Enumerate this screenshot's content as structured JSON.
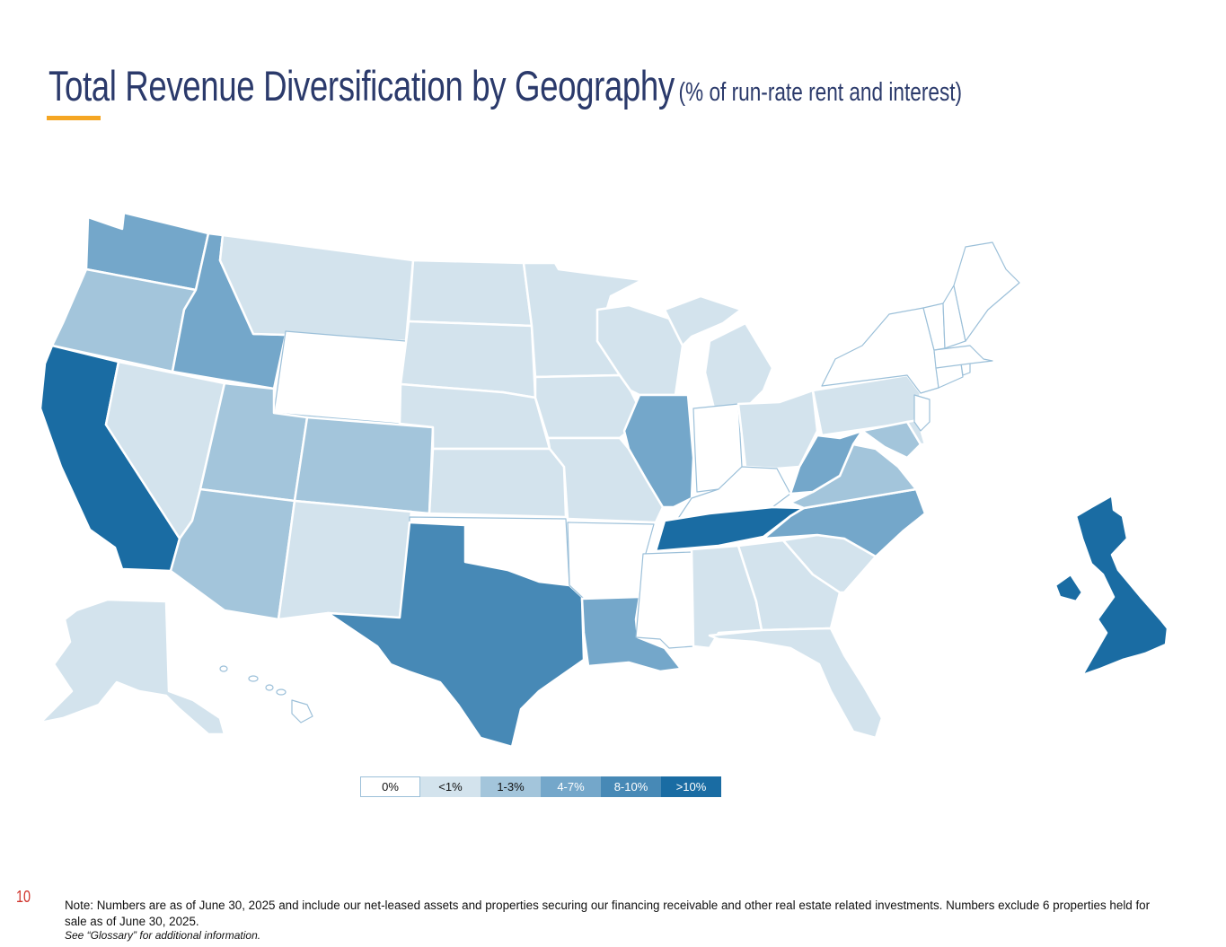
{
  "title": {
    "main": "Total Revenue Diversification by Geography",
    "sub": "(% of run-rate rent and interest)"
  },
  "colors": {
    "0%": "#ffffff",
    "<1%": "#d3e3ed",
    "1-3%": "#a3c5db",
    "4-7%": "#74a7ca",
    "8-10%": "#4789b6",
    ">10%": "#1a6ca3",
    "border": "#ffffff",
    "outline": "#9cc0d9",
    "title": "#2b3a6b",
    "accent": "#f5a623"
  },
  "legend": [
    {
      "label": "0%",
      "level": "0%",
      "text_color": "#111111"
    },
    {
      "label": "<1%",
      "level": "<1%",
      "text_color": "#111111"
    },
    {
      "label": "1-3%",
      "level": "1-3%",
      "text_color": "#111111"
    },
    {
      "label": "4-7%",
      "level": "4-7%",
      "text_color": "#ffffff"
    },
    {
      "label": "8-10%",
      "level": "8-10%",
      "text_color": "#ffffff"
    },
    {
      "label": ">10%",
      "level": ">10%",
      "text_color": "#ffffff"
    }
  ],
  "regions": [
    {
      "id": "WA",
      "level": "4-7%"
    },
    {
      "id": "OR",
      "level": "1-3%"
    },
    {
      "id": "CA",
      "level": ">10%"
    },
    {
      "id": "ID",
      "level": "4-7%"
    },
    {
      "id": "NV",
      "level": "<1%"
    },
    {
      "id": "MT",
      "level": "<1%"
    },
    {
      "id": "WY",
      "level": "0%"
    },
    {
      "id": "UT",
      "level": "1-3%"
    },
    {
      "id": "CO",
      "level": "1-3%"
    },
    {
      "id": "AZ",
      "level": "1-3%"
    },
    {
      "id": "NM",
      "level": "<1%"
    },
    {
      "id": "ND",
      "level": "<1%"
    },
    {
      "id": "SD",
      "level": "<1%"
    },
    {
      "id": "NE",
      "level": "<1%"
    },
    {
      "id": "KS",
      "level": "<1%"
    },
    {
      "id": "OK",
      "level": "0%"
    },
    {
      "id": "TX",
      "level": "8-10%"
    },
    {
      "id": "MN",
      "level": "<1%"
    },
    {
      "id": "IA",
      "level": "<1%"
    },
    {
      "id": "MO",
      "level": "<1%"
    },
    {
      "id": "AR",
      "level": "0%"
    },
    {
      "id": "LA",
      "level": "4-7%"
    },
    {
      "id": "WI",
      "level": "<1%"
    },
    {
      "id": "IL",
      "level": "4-7%"
    },
    {
      "id": "MI",
      "level": "<1%"
    },
    {
      "id": "IN",
      "level": "0%"
    },
    {
      "id": "OH",
      "level": "<1%"
    },
    {
      "id": "KY",
      "level": "0%"
    },
    {
      "id": "TN",
      "level": ">10%"
    },
    {
      "id": "MS",
      "level": "0%"
    },
    {
      "id": "AL",
      "level": "<1%"
    },
    {
      "id": "GA",
      "level": "<1%"
    },
    {
      "id": "FL",
      "level": "<1%"
    },
    {
      "id": "SC",
      "level": "<1%"
    },
    {
      "id": "NC",
      "level": "4-7%"
    },
    {
      "id": "VA",
      "level": "1-3%"
    },
    {
      "id": "WV",
      "level": "4-7%"
    },
    {
      "id": "PA",
      "level": "<1%"
    },
    {
      "id": "MD",
      "level": "1-3%"
    },
    {
      "id": "DE",
      "level": "<1%"
    },
    {
      "id": "NJ",
      "level": "0%"
    },
    {
      "id": "NY",
      "level": "0%"
    },
    {
      "id": "CT",
      "level": "0%"
    },
    {
      "id": "RI",
      "level": "0%"
    },
    {
      "id": "MA",
      "level": "0%"
    },
    {
      "id": "VT",
      "level": "0%"
    },
    {
      "id": "NH",
      "level": "0%"
    },
    {
      "id": "ME",
      "level": "0%"
    },
    {
      "id": "AK",
      "level": "<1%"
    },
    {
      "id": "HI",
      "level": "0%"
    },
    {
      "id": "UK",
      "level": ">10%"
    }
  ],
  "page_number": "10",
  "note": "Note: Numbers are as of June 30, 2025 and include our net-leased assets and properties securing our financing receivable and other real estate related investments. Numbers exclude 6 properties held for sale as of June 30, 2025.",
  "see_note": "See “Glossary” for additional information."
}
